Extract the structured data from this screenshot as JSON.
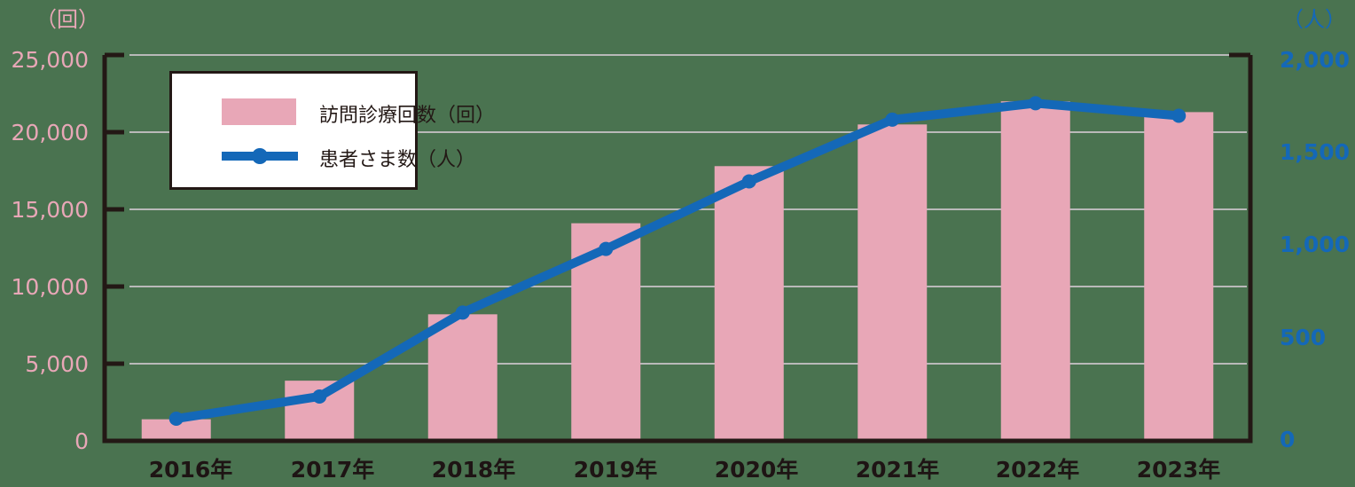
{
  "chart_data": {
    "type": "bar+line",
    "title": "",
    "categories": [
      "2016年",
      "2017年",
      "2018年",
      "2019年",
      "2020年",
      "2021年",
      "2022年",
      "2023年"
    ],
    "series": [
      {
        "name": "訪問診療回数（回）",
        "type": "bar",
        "axis": "left",
        "color": "#e8a7b7",
        "values": [
          1400,
          3900,
          8200,
          14100,
          17800,
          20500,
          22000,
          21300
        ]
      },
      {
        "name": "患者さま数（人）",
        "type": "line",
        "axis": "right",
        "color": "#1468b8",
        "values": [
          115,
          230,
          665,
          995,
          1345,
          1665,
          1750,
          1685
        ]
      }
    ],
    "y_left": {
      "label": "（回）",
      "ticks": [
        "25,000",
        "20,000",
        "15,000",
        "10,000",
        "5,000",
        "0"
      ],
      "ylim": [
        0,
        25000
      ],
      "color": "#e8a7b7"
    },
    "y_right": {
      "label": "（人）",
      "ticks": [
        "2,000",
        "1,500",
        "1,000",
        "500",
        "0"
      ],
      "ylim": [
        0,
        2000
      ],
      "color": "#1468b8"
    },
    "grid": true,
    "legend_position": "upper-left"
  },
  "legend": {
    "bar_label": "訪問診療回数（回）",
    "line_label": "患者さま数（人）"
  },
  "axes": {
    "left_unit": "（回）",
    "right_unit": "（人）",
    "left_ticks": [
      "25,000",
      "20,000",
      "15,000",
      "10,000",
      "5,000",
      "0"
    ],
    "right_ticks": [
      "2,000",
      "1,500",
      "1,000",
      "500",
      "0"
    ]
  },
  "x_labels": [
    "2016年",
    "2017年",
    "2018年",
    "2019年",
    "2020年",
    "2021年",
    "2022年",
    "2023年"
  ]
}
